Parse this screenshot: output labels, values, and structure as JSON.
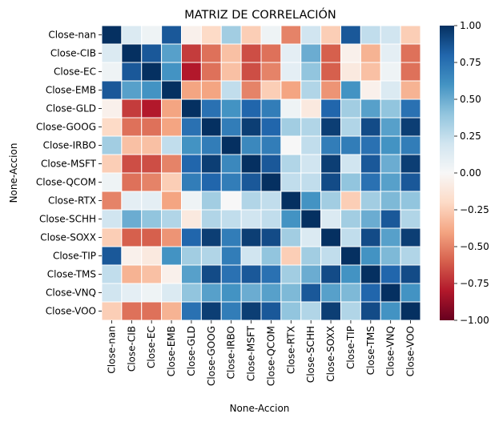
{
  "chart_data": {
    "type": "heatmap",
    "title": "MATRIZ DE CORRELACIÓN",
    "xlabel": "None-Accion",
    "ylabel": "None-Accion",
    "labels": [
      "Close-nan",
      "Close-CIB",
      "Close-EC",
      "Close-EMB",
      "Close-GLD",
      "Close-GOOG",
      "Close-IRBO",
      "Close-MSFT",
      "Close-QCOM",
      "Close-RTX",
      "Close-SCHH",
      "Close-SOXX",
      "Close-TIP",
      "Close-TMS",
      "Close-VNQ",
      "Close-VOO"
    ],
    "matrix": [
      [
        1.0,
        0.15,
        0.05,
        0.85,
        -0.05,
        -0.2,
        0.35,
        -0.25,
        0.05,
        -0.5,
        0.2,
        -0.25,
        0.85,
        0.25,
        0.2,
        -0.25
      ],
      [
        0.15,
        1.0,
        0.85,
        0.55,
        -0.7,
        -0.55,
        -0.3,
        -0.65,
        -0.55,
        0.1,
        0.5,
        -0.6,
        -0.05,
        -0.35,
        0.1,
        -0.55
      ],
      [
        0.05,
        0.85,
        1.0,
        0.6,
        -0.8,
        -0.55,
        -0.3,
        -0.65,
        -0.5,
        0.1,
        0.4,
        -0.6,
        -0.1,
        -0.3,
        0.05,
        -0.55
      ],
      [
        0.85,
        0.55,
        0.6,
        1.0,
        -0.4,
        -0.4,
        0.25,
        -0.5,
        -0.25,
        -0.4,
        0.3,
        -0.45,
        0.6,
        -0.05,
        0.15,
        -0.35
      ],
      [
        -0.05,
        -0.7,
        -0.8,
        -0.4,
        1.0,
        0.75,
        0.6,
        0.8,
        0.7,
        0.05,
        -0.1,
        0.8,
        0.35,
        0.55,
        0.4,
        0.75
      ],
      [
        -0.2,
        -0.55,
        -0.55,
        -0.4,
        0.75,
        1.0,
        0.7,
        0.95,
        0.8,
        0.35,
        0.3,
        0.95,
        0.3,
        0.9,
        0.55,
        0.95
      ],
      [
        0.35,
        -0.3,
        -0.3,
        0.25,
        0.6,
        0.7,
        1.0,
        0.65,
        0.7,
        0.0,
        0.25,
        0.7,
        0.7,
        0.75,
        0.6,
        0.7
      ],
      [
        -0.25,
        -0.65,
        -0.65,
        -0.5,
        0.8,
        0.95,
        0.65,
        1.0,
        0.85,
        0.3,
        0.2,
        0.95,
        0.2,
        0.85,
        0.5,
        0.95
      ],
      [
        0.05,
        -0.55,
        -0.5,
        -0.25,
        0.7,
        0.8,
        0.7,
        0.85,
        1.0,
        0.25,
        0.25,
        0.9,
        0.4,
        0.75,
        0.55,
        0.85
      ],
      [
        -0.5,
        0.1,
        0.1,
        -0.4,
        0.05,
        0.35,
        0.0,
        0.3,
        0.25,
        1.0,
        0.6,
        0.35,
        -0.25,
        0.35,
        0.45,
        0.4
      ],
      [
        0.2,
        0.5,
        0.4,
        0.3,
        -0.1,
        0.3,
        0.25,
        0.2,
        0.25,
        0.6,
        1.0,
        0.15,
        0.35,
        0.5,
        0.85,
        0.3
      ],
      [
        -0.25,
        -0.6,
        -0.6,
        -0.45,
        0.8,
        0.95,
        0.7,
        0.95,
        0.9,
        0.35,
        0.15,
        1.0,
        0.25,
        0.9,
        0.55,
        0.95
      ],
      [
        0.85,
        -0.05,
        -0.1,
        0.6,
        0.35,
        0.3,
        0.7,
        0.2,
        0.4,
        -0.25,
        0.35,
        0.25,
        1.0,
        0.6,
        0.45,
        0.3
      ],
      [
        0.25,
        -0.35,
        -0.3,
        -0.05,
        0.55,
        0.9,
        0.75,
        0.85,
        0.75,
        0.35,
        0.5,
        0.9,
        0.6,
        1.0,
        0.8,
        0.9
      ],
      [
        0.2,
        0.1,
        0.05,
        0.15,
        0.4,
        0.55,
        0.6,
        0.5,
        0.55,
        0.45,
        0.85,
        0.55,
        0.45,
        0.8,
        1.0,
        0.6
      ],
      [
        -0.25,
        -0.55,
        -0.55,
        -0.35,
        0.75,
        0.95,
        0.7,
        0.95,
        0.85,
        0.4,
        0.3,
        0.95,
        0.3,
        0.9,
        0.6,
        1.0
      ]
    ],
    "vmin": -1.0,
    "vmax": 1.0,
    "colormap": "RdBu",
    "colorbar_ticks": [
      "1.00",
      "0.75",
      "0.50",
      "0.25",
      "0.00",
      "−0.25",
      "−0.50",
      "−0.75",
      "−1.00"
    ],
    "colorbar_tick_values": [
      1.0,
      0.75,
      0.5,
      0.25,
      0.0,
      -0.25,
      -0.5,
      -0.75,
      -1.0
    ],
    "colors": {
      "low": "#67001f",
      "mid": "#f7f7f7",
      "high": "#053061",
      "cell_border": "#ffffff"
    }
  }
}
